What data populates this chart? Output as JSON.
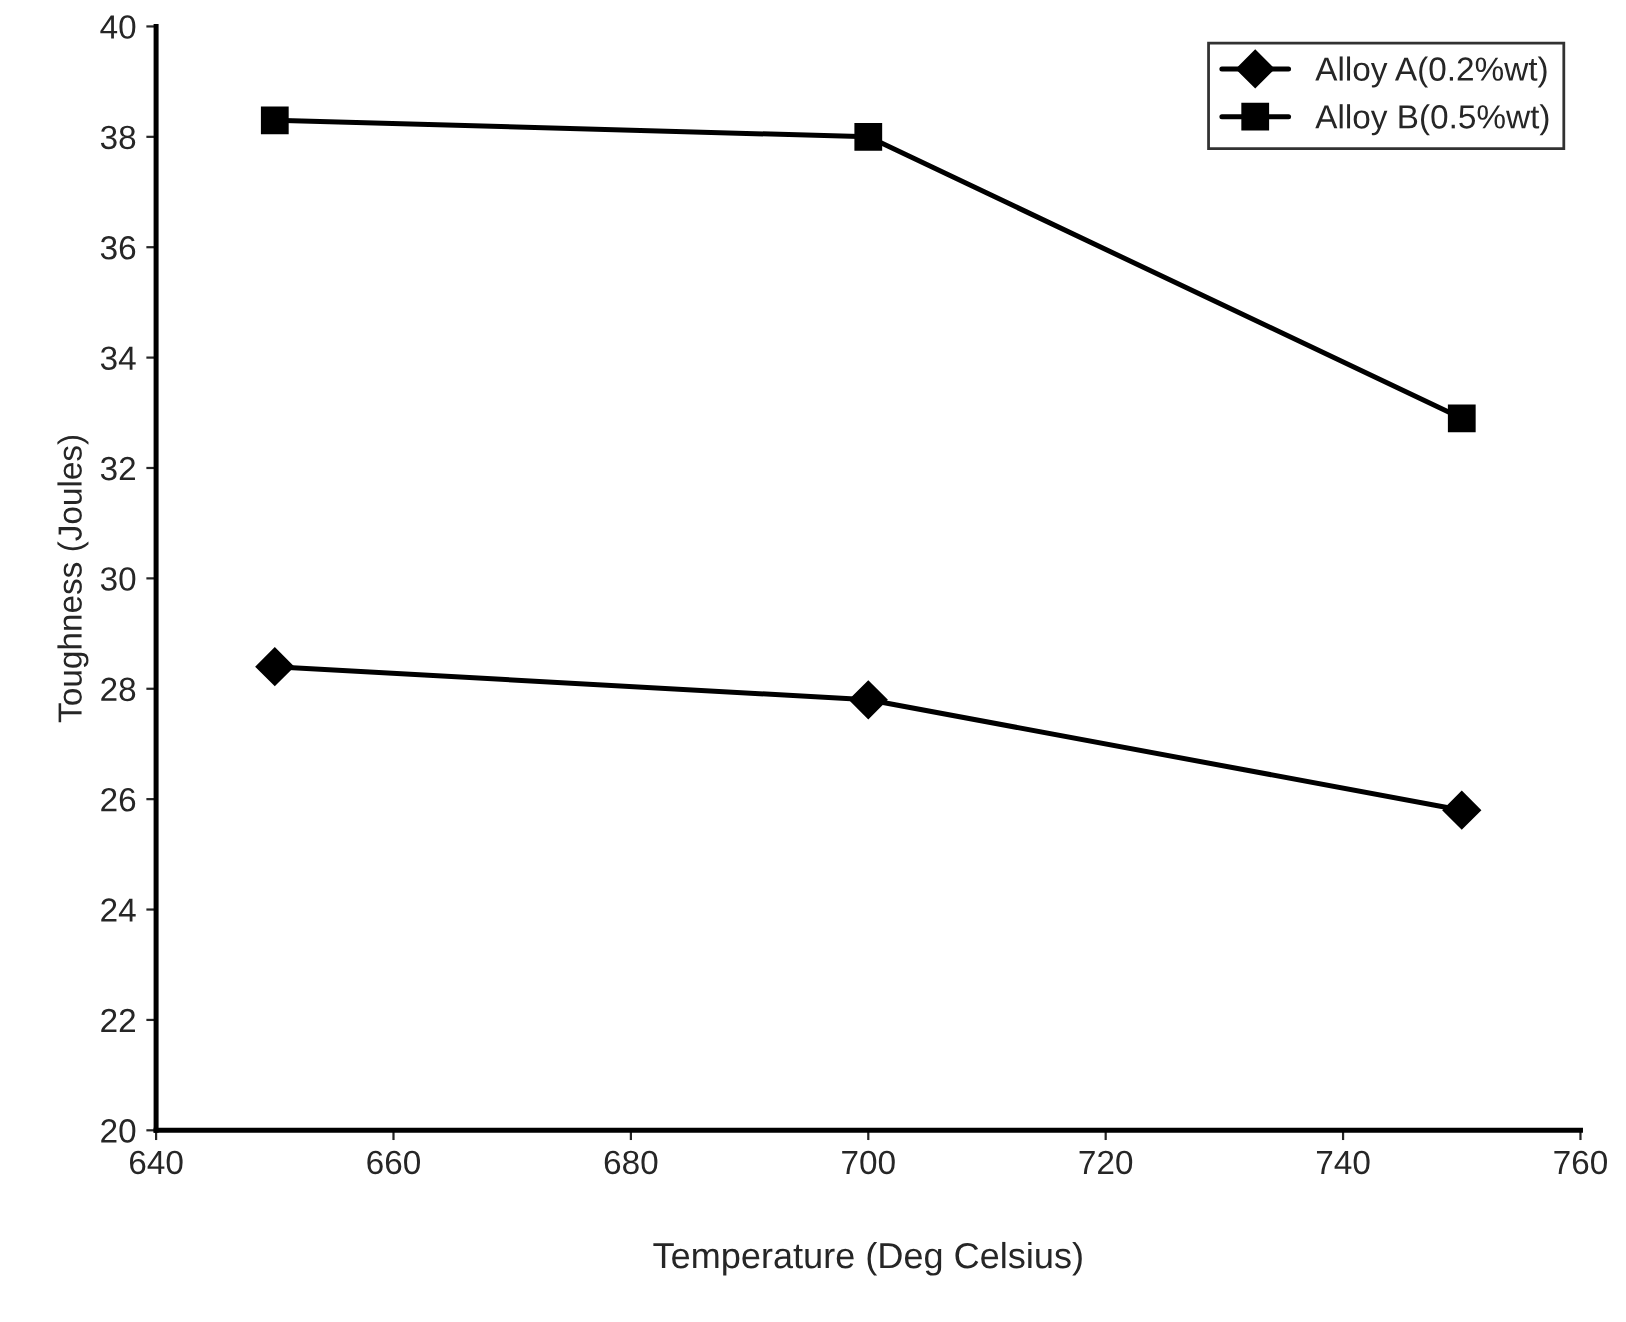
{
  "chart_data": {
    "type": "line",
    "xlabel": "Temperature (Deg Celsius)",
    "ylabel": "Toughness (Joules)",
    "x": [
      650,
      700,
      750
    ],
    "series": [
      {
        "name": "Alloy A(0.2%wt)",
        "color": "#000000",
        "marker": "diamond",
        "values": [
          28.4,
          27.8,
          25.8
        ]
      },
      {
        "name": "Alloy B(0.5%wt)",
        "color": "#000000",
        "marker": "square",
        "values": [
          38.3,
          38.0,
          32.9
        ]
      }
    ],
    "xlim": [
      640,
      760
    ],
    "xticks": [
      640,
      660,
      680,
      700,
      720,
      740,
      760
    ],
    "ylim": [
      20,
      40
    ],
    "yticks": [
      20,
      22,
      24,
      26,
      28,
      30,
      32,
      34,
      36,
      38,
      40
    ],
    "grid": false,
    "legend": "top right",
    "line_style": "solid"
  }
}
